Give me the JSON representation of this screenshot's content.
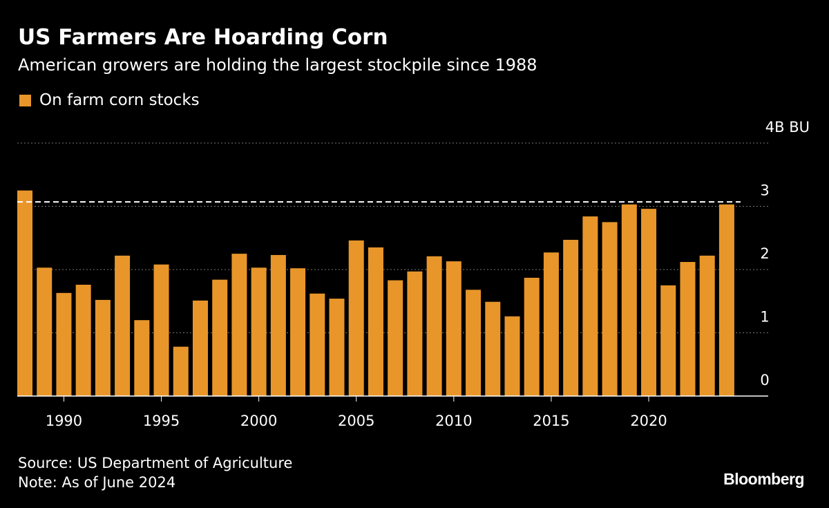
{
  "title": "US Farmers Are Hoarding Corn",
  "subtitle": "American growers are holding the largest stockpile since 1988",
  "source": "Source: US Department of Agriculture",
  "note": "Note: As of June 2024",
  "logo": "Bloomberg",
  "colors": {
    "bar": "#e8962a",
    "background": "#000000",
    "reference_line": "#ffffff"
  },
  "chart_data": {
    "type": "bar",
    "title": "US Farmers Are Hoarding Corn",
    "series": [
      {
        "name": "On farm corn stocks",
        "color": "#e8962a"
      }
    ],
    "categories": [
      1988,
      1989,
      1990,
      1991,
      1992,
      1993,
      1994,
      1995,
      1996,
      1997,
      1998,
      1999,
      2000,
      2001,
      2002,
      2003,
      2004,
      2005,
      2006,
      2007,
      2008,
      2009,
      2010,
      2011,
      2012,
      2013,
      2014,
      2015,
      2016,
      2017,
      2018,
      2019,
      2020,
      2021,
      2022,
      2023,
      2024
    ],
    "values": [
      3.25,
      2.03,
      1.63,
      1.76,
      1.52,
      2.22,
      1.2,
      2.08,
      0.78,
      1.51,
      1.84,
      2.25,
      2.03,
      2.23,
      2.02,
      1.62,
      1.54,
      2.46,
      2.35,
      1.83,
      1.97,
      2.21,
      2.13,
      1.68,
      1.49,
      1.26,
      1.87,
      2.27,
      2.47,
      2.84,
      2.75,
      3.03,
      2.96,
      1.75,
      2.12,
      2.22,
      3.03
    ],
    "unit": "B BU",
    "ylim": [
      0,
      4
    ],
    "yticks": [
      {
        "value": 0,
        "label": "0"
      },
      {
        "value": 1,
        "label": "1"
      },
      {
        "value": 2,
        "label": "2"
      },
      {
        "value": 3,
        "label": "3"
      },
      {
        "value": 4,
        "label": "4B BU"
      }
    ],
    "xticks": [
      1990,
      1995,
      2000,
      2005,
      2010,
      2015,
      2020
    ],
    "reference_line": {
      "value": 3.07,
      "style": "dashed"
    },
    "grid": true,
    "legend_position": "top-left"
  }
}
